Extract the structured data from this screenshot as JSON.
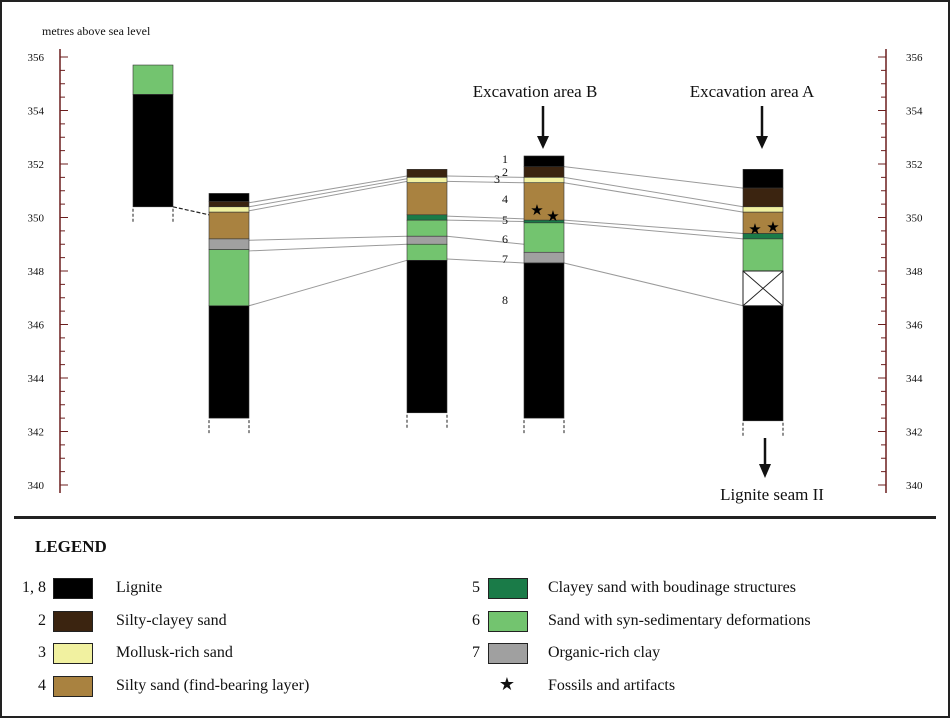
{
  "colors": {
    "lignite": "#000000",
    "silty_clayey_sand": "#3b2410",
    "mollusk_rich_sand": "#f1f1a0",
    "silty_sand": "#a98240",
    "clayey_sand": "#1a7b48",
    "sand_deformations": "#73c46f",
    "organic_clay": "#a0a0a0",
    "axis": "#6b1e1e",
    "correlation_line": "#9a9a9a"
  },
  "axis": {
    "title": "metres above sea level",
    "min": 340,
    "max": 356,
    "ticks": [
      "356",
      "354",
      "352",
      "350",
      "348",
      "346",
      "344",
      "342",
      "340"
    ]
  },
  "annotations": {
    "excavation_b": "Excavation  area B",
    "excavation_a": "Excavation  area A",
    "lignite_seam": "Lignite  seam II"
  },
  "layer_numbers": [
    "1",
    "2",
    "3",
    "4",
    "5",
    "6",
    "7",
    "8"
  ],
  "sections": [
    {
      "id": 1,
      "layers": [
        {
          "type": "sand_deformations",
          "top": 355.7,
          "bottom": 354.6
        },
        {
          "type": "lignite",
          "top": 354.6,
          "bottom": 350.4
        }
      ]
    },
    {
      "id": 2,
      "layers": [
        {
          "type": "lignite",
          "top": 350.9,
          "bottom": 350.6
        },
        {
          "type": "silty_clayey_sand",
          "top": 350.6,
          "bottom": 350.4
        },
        {
          "type": "mollusk_rich_sand",
          "top": 350.4,
          "bottom": 350.2
        },
        {
          "type": "silty_sand",
          "top": 350.2,
          "bottom": 349.2
        },
        {
          "type": "organic_clay",
          "top": 349.2,
          "bottom": 348.8
        },
        {
          "type": "sand_deformations",
          "top": 348.8,
          "bottom": 346.7
        },
        {
          "type": "lignite",
          "top": 346.7,
          "bottom": 342.5
        }
      ]
    },
    {
      "id": 3,
      "layers": [
        {
          "type": "silty_clayey_sand",
          "top": 351.8,
          "bottom": 351.5
        },
        {
          "type": "mollusk_rich_sand",
          "top": 351.5,
          "bottom": 351.3
        },
        {
          "type": "silty_sand",
          "top": 351.3,
          "bottom": 350.1
        },
        {
          "type": "clayey_sand",
          "top": 350.1,
          "bottom": 349.9
        },
        {
          "type": "sand_deformations",
          "top": 349.9,
          "bottom": 349.3
        },
        {
          "type": "organic_clay",
          "top": 349.3,
          "bottom": 349.0
        },
        {
          "type": "sand_deformations",
          "top": 349.0,
          "bottom": 348.4
        },
        {
          "type": "lignite",
          "top": 348.4,
          "bottom": 342.7
        }
      ]
    },
    {
      "id": 4,
      "layers": [
        {
          "type": "lignite",
          "top": 352.3,
          "bottom": 351.9
        },
        {
          "type": "silty_clayey_sand",
          "top": 351.9,
          "bottom": 351.5
        },
        {
          "type": "mollusk_rich_sand",
          "top": 351.5,
          "bottom": 351.3
        },
        {
          "type": "silty_sand",
          "top": 351.3,
          "bottom": 349.9
        },
        {
          "type": "clayey_sand",
          "top": 349.9,
          "bottom": 349.8
        },
        {
          "type": "sand_deformations",
          "top": 349.8,
          "bottom": 348.7
        },
        {
          "type": "organic_clay",
          "top": 348.7,
          "bottom": 348.3
        },
        {
          "type": "lignite",
          "top": 348.3,
          "bottom": 342.5
        }
      ]
    },
    {
      "id": 5,
      "layers": [
        {
          "type": "lignite",
          "top": 351.8,
          "bottom": 351.1
        },
        {
          "type": "silty_clayey_sand",
          "top": 351.1,
          "bottom": 350.4
        },
        {
          "type": "mollusk_rich_sand",
          "top": 350.4,
          "bottom": 350.2
        },
        {
          "type": "silty_sand",
          "top": 350.2,
          "bottom": 349.4
        },
        {
          "type": "clayey_sand",
          "top": 349.4,
          "bottom": 349.2
        },
        {
          "type": "sand_deformations",
          "top": 349.2,
          "bottom": 348.0
        },
        {
          "type": "unknown",
          "top": 348.0,
          "bottom": 346.7
        },
        {
          "type": "lignite",
          "top": 346.7,
          "bottom": 342.4
        }
      ]
    }
  ],
  "legend": {
    "title": "LEGEND",
    "fossils_symbol": "★",
    "items": [
      {
        "code": "1, 8",
        "type": "lignite",
        "label": "Lignite"
      },
      {
        "code": "2",
        "type": "silty_clayey_sand",
        "label": "Silty-clayey sand"
      },
      {
        "code": "3",
        "type": "mollusk_rich_sand",
        "label": "Mollusk-rich sand"
      },
      {
        "code": "4",
        "type": "silty_sand",
        "label": "Silty sand (find-bearing layer)"
      },
      {
        "code": "5",
        "type": "clayey_sand",
        "label": "Clayey sand with boudinage structures"
      },
      {
        "code": "6",
        "type": "sand_deformations",
        "label": "Sand with syn-sedimentary deformations"
      },
      {
        "code": "7",
        "type": "organic_clay",
        "label": "Organic-rich clay"
      },
      {
        "code": "",
        "type": "fossils",
        "label": "Fossils and artifacts"
      }
    ]
  }
}
